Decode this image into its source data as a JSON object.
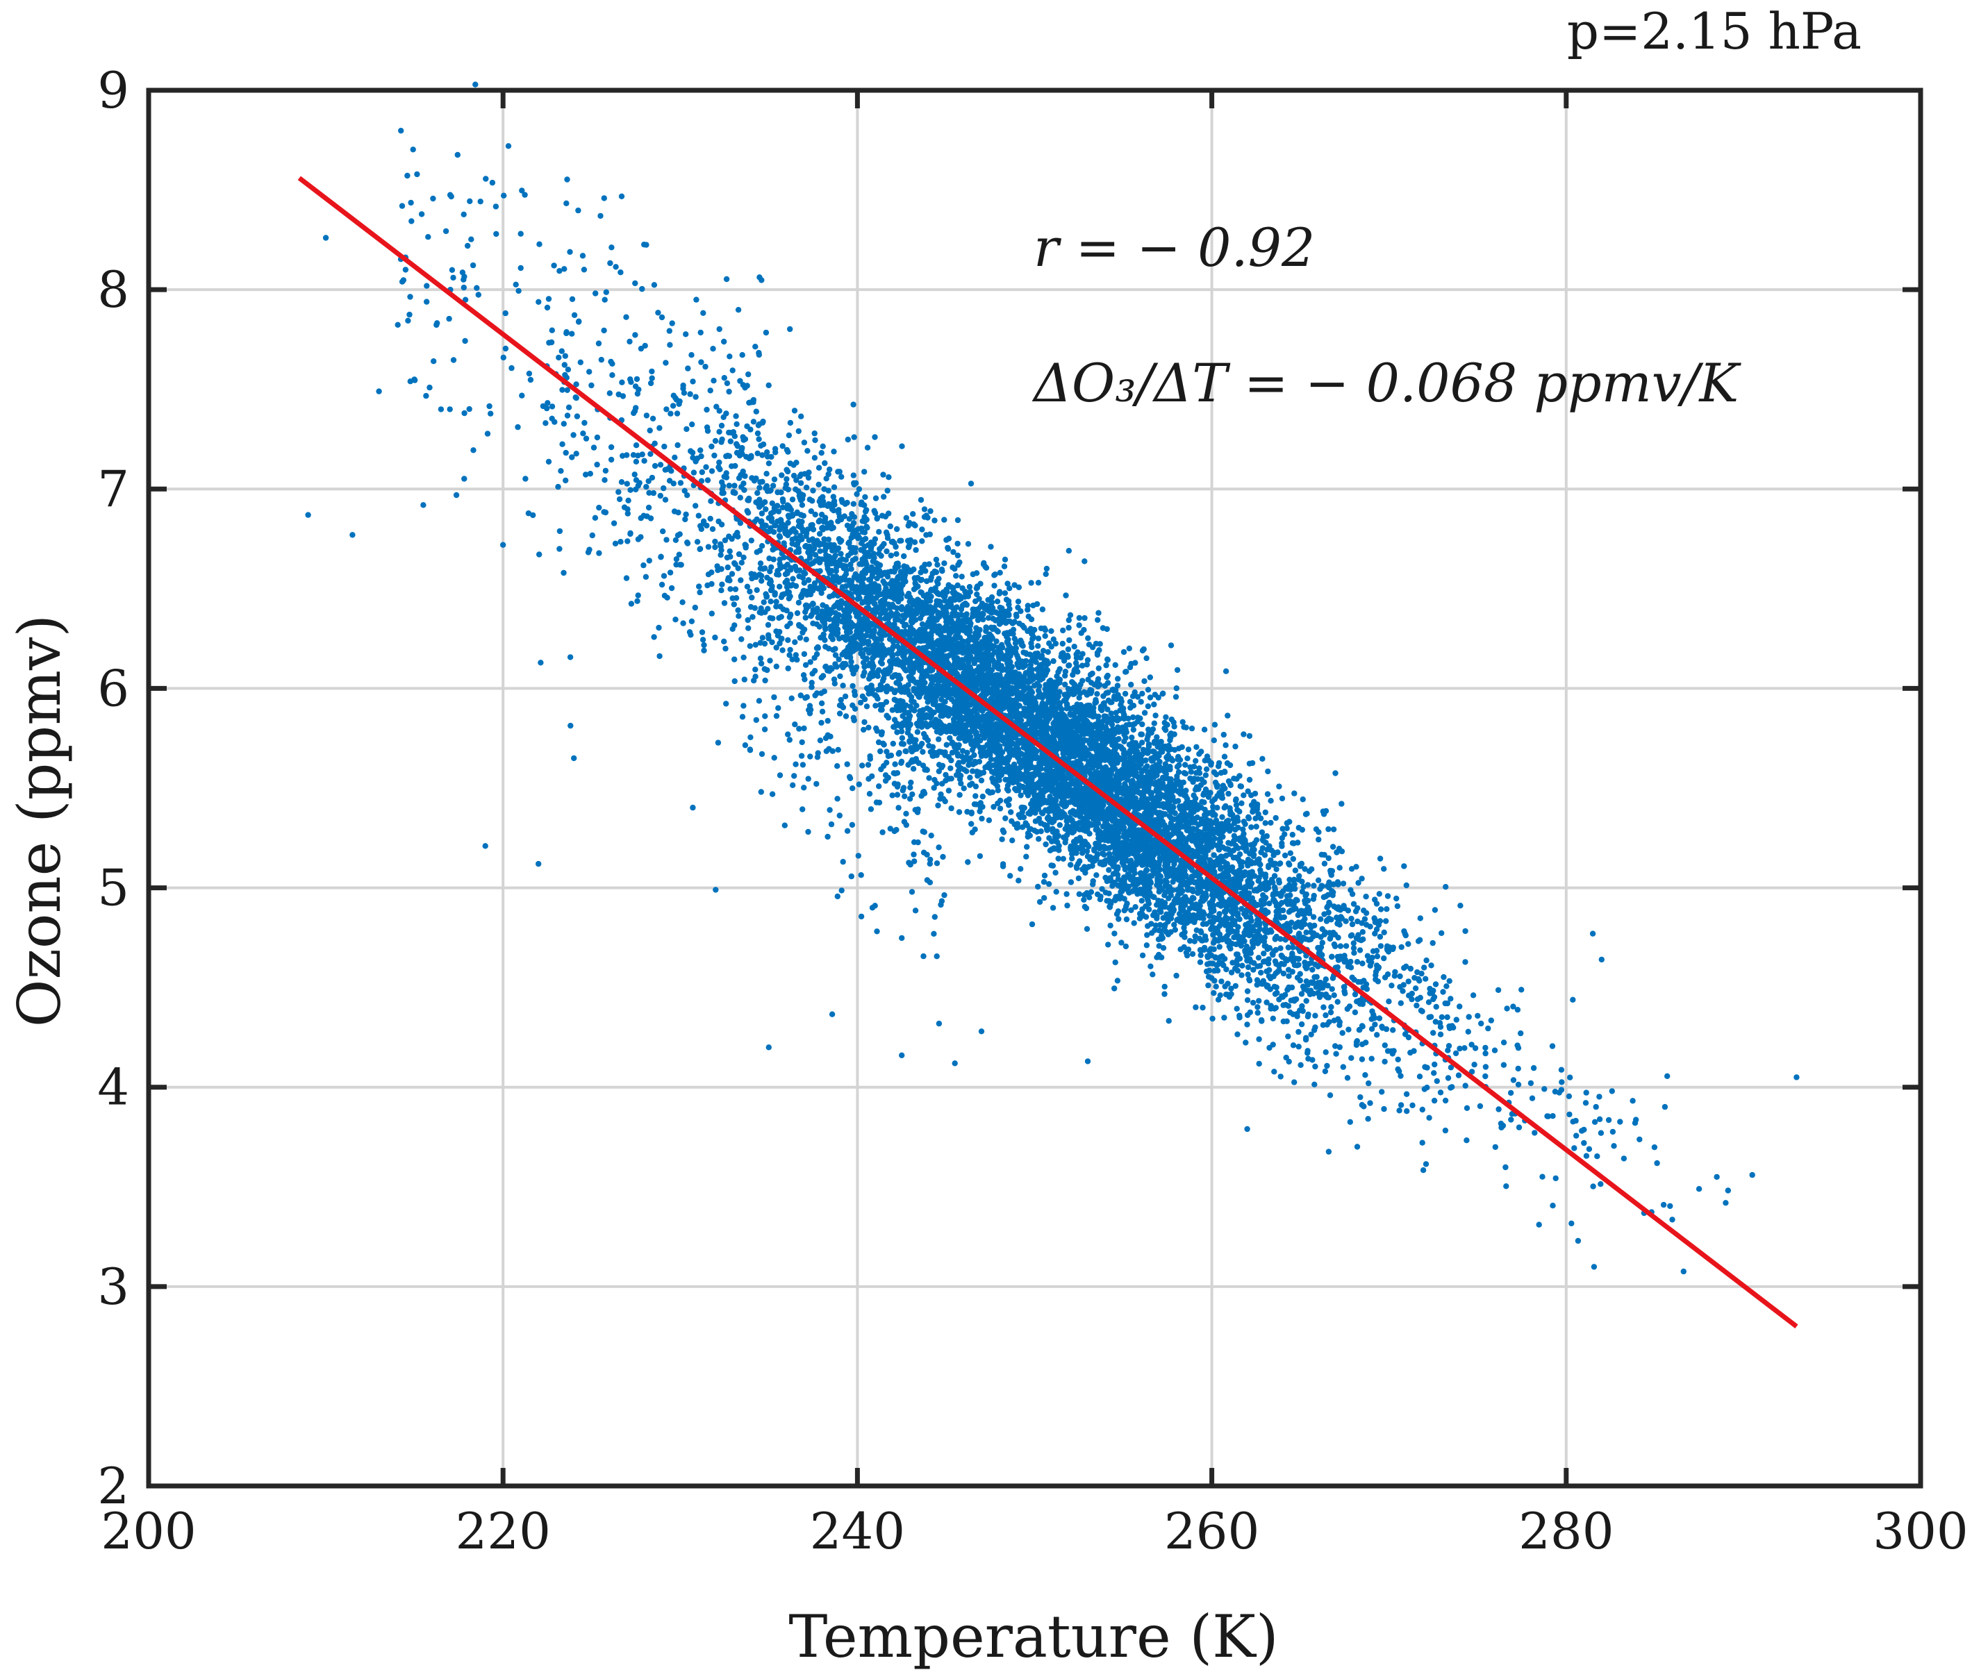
{
  "chart_data": {
    "type": "scatter",
    "title": "",
    "pressure_label": "p=2.15 hPa",
    "xlabel": "Temperature (K)",
    "ylabel": "Ozone (ppmv)",
    "xlim": [
      200,
      300
    ],
    "ylim": [
      2,
      9
    ],
    "xticks": [
      200,
      220,
      240,
      260,
      280,
      300
    ],
    "yticks": [
      2,
      3,
      4,
      5,
      6,
      7,
      8,
      9
    ],
    "xtick_labels": [
      "200",
      "220",
      "240",
      "260",
      "280",
      "300"
    ],
    "ytick_labels": [
      "2",
      "3",
      "4",
      "5",
      "6",
      "7",
      "8",
      "9"
    ],
    "grid": true,
    "annotations": {
      "correlation": "r = − 0.92",
      "slope_text": "ΔO₃/ΔT = − 0.068 ppmv/K"
    },
    "regression_line": {
      "x": [
        208.5,
        293
      ],
      "y": [
        8.56,
        2.8
      ],
      "color": "#e8141b"
    },
    "scatter": {
      "color": "#0072bd",
      "n_points": 9000,
      "trend_slope": -0.068,
      "trend_intercept": 22.77,
      "x_core_range": [
        225,
        272
      ],
      "x_full_range": [
        209,
        293
      ],
      "outlier_points": [
        [
          209,
          6.87
        ],
        [
          210,
          8.26
        ],
        [
          211.5,
          6.77
        ],
        [
          213,
          7.49
        ],
        [
          214.5,
          8.1
        ],
        [
          215,
          7.55
        ],
        [
          215.5,
          6.92
        ],
        [
          216.5,
          7.4
        ],
        [
          217,
          7.4
        ],
        [
          218,
          8.22
        ],
        [
          219,
          5.21
        ],
        [
          220,
          6.72
        ],
        [
          221,
          8.28
        ],
        [
          222,
          5.12
        ],
        [
          224,
          5.65
        ],
        [
          224.5,
          8.17
        ],
        [
          225.5,
          8.37
        ],
        [
          232,
          4.99
        ],
        [
          235,
          4.2
        ],
        [
          242.5,
          4.16
        ],
        [
          245.5,
          4.12
        ],
        [
          247,
          4.28
        ],
        [
          253,
          4.13
        ],
        [
          262,
          3.79
        ],
        [
          271,
          3.88
        ],
        [
          276,
          3.7
        ],
        [
          281,
          3.72
        ],
        [
          285.5,
          3.41
        ],
        [
          287.5,
          3.49
        ],
        [
          288.5,
          3.55
        ],
        [
          289,
          3.42
        ],
        [
          290.5,
          3.56
        ],
        [
          293,
          4.05
        ],
        [
          282,
          4.64
        ],
        [
          281.5,
          4.77
        ]
      ]
    }
  }
}
